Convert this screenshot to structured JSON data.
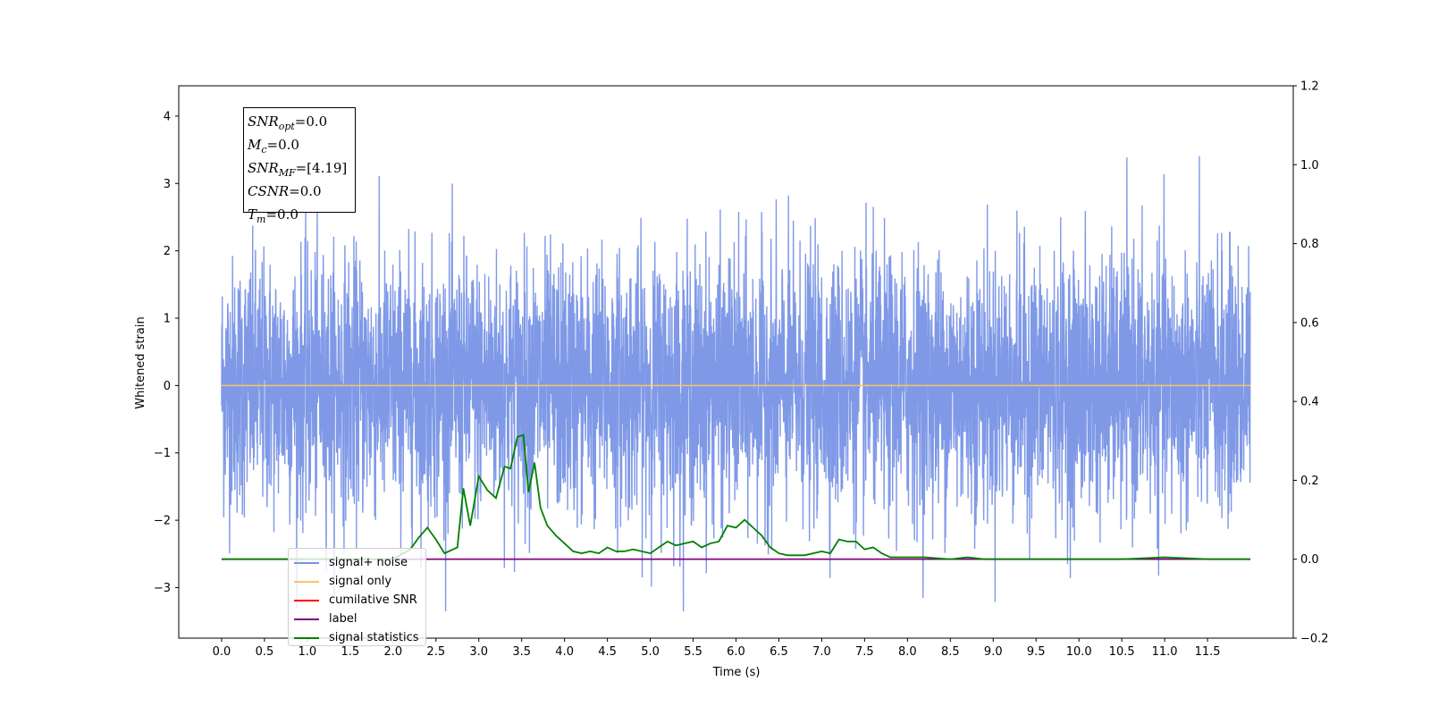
{
  "chart_data": {
    "type": "line",
    "xlabel": "Time (s)",
    "ylabel": "Whitened strain",
    "xlim": [
      -0.5,
      12.5
    ],
    "xticks": [
      "0.0",
      "0.5",
      "1.0",
      "1.5",
      "2.0",
      "2.5",
      "3.0",
      "3.5",
      "4.0",
      "4.5",
      "5.0",
      "5.5",
      "6.0",
      "6.5",
      "7.0",
      "7.5",
      "8.0",
      "8.5",
      "9.0",
      "9.5",
      "10.0",
      "10.5",
      "11.0",
      "11.5"
    ],
    "ylim_left": [
      -3.75,
      4.45
    ],
    "yticks_left": [
      4,
      3,
      2,
      1,
      0,
      -1,
      -2,
      -3
    ],
    "yticks_left_labels": [
      "4",
      "3",
      "2",
      "1",
      "0",
      "−1",
      "−2",
      "−3"
    ],
    "ylim_right": [
      -0.2,
      1.2
    ],
    "yticks_right": [
      "1.2",
      "1.0",
      "0.8",
      "0.6",
      "0.4",
      "0.2",
      "0.0",
      "−0.2"
    ],
    "grid": false,
    "legend_position": "lower-left",
    "series": [
      {
        "name": "signal+ noise",
        "color": "#7893e6",
        "axis": "left",
        "description_stats": {
          "x_start": 0.0,
          "x_end": 12.0,
          "typical_abs": 1.5,
          "max": 3.5,
          "min": -3.35
        }
      },
      {
        "name": "signal only",
        "color": "#ffc266",
        "axis": "left",
        "x": [
          0.0,
          12.0
        ],
        "y": [
          0.0,
          0.0
        ]
      },
      {
        "name": "cumilative SNR",
        "color": "#ff0000",
        "axis": "right",
        "x": [
          0.0,
          12.0
        ],
        "y": [
          0.0,
          0.0
        ]
      },
      {
        "name": "label",
        "color": "#800080",
        "axis": "right",
        "x": [
          0.0,
          12.0
        ],
        "y": [
          0.0,
          0.0
        ]
      },
      {
        "name": "signal statistics",
        "color": "#008000",
        "axis": "right",
        "x": [
          0.0,
          2.0,
          2.2,
          2.3,
          2.4,
          2.5,
          2.6,
          2.75,
          2.82,
          2.9,
          3.0,
          3.1,
          3.2,
          3.3,
          3.37,
          3.45,
          3.52,
          3.58,
          3.65,
          3.72,
          3.8,
          3.9,
          4.0,
          4.1,
          4.2,
          4.3,
          4.4,
          4.5,
          4.6,
          4.7,
          4.8,
          5.0,
          5.2,
          5.3,
          5.4,
          5.5,
          5.6,
          5.7,
          5.8,
          5.9,
          6.0,
          6.1,
          6.2,
          6.3,
          6.4,
          6.5,
          6.6,
          6.7,
          6.8,
          7.0,
          7.1,
          7.2,
          7.3,
          7.4,
          7.5,
          7.6,
          7.7,
          7.8,
          8.0,
          8.2,
          8.5,
          8.7,
          8.9,
          9.2,
          9.5,
          10.0,
          10.5,
          11.0,
          11.5,
          12.0
        ],
        "y": [
          0.0,
          0.0,
          0.025,
          0.055,
          0.08,
          0.05,
          0.015,
          0.03,
          0.18,
          0.085,
          0.21,
          0.175,
          0.155,
          0.235,
          0.23,
          0.31,
          0.315,
          0.17,
          0.245,
          0.13,
          0.085,
          0.06,
          0.04,
          0.02,
          0.015,
          0.02,
          0.015,
          0.03,
          0.02,
          0.02,
          0.025,
          0.015,
          0.045,
          0.035,
          0.04,
          0.045,
          0.03,
          0.04,
          0.045,
          0.085,
          0.08,
          0.1,
          0.08,
          0.06,
          0.03,
          0.015,
          0.01,
          0.01,
          0.01,
          0.02,
          0.015,
          0.05,
          0.045,
          0.045,
          0.025,
          0.03,
          0.015,
          0.005,
          0.005,
          0.005,
          0.0,
          0.005,
          0.0,
          0.0,
          0.0,
          0.0,
          0.0,
          0.005,
          0.0,
          0.0
        ]
      }
    ]
  },
  "info_box": {
    "lines": [
      {
        "sym": "SNR",
        "sub": "opt",
        "value": "=0.0"
      },
      {
        "sym": "M",
        "sub": "c",
        "value": "=0.0"
      },
      {
        "sym": "SNR",
        "sub": "MF",
        "value": "=[4.19]"
      },
      {
        "sym": "CSNR",
        "sub": "",
        "value": "=0.0"
      },
      {
        "sym": "T",
        "sub": "m",
        "value": "=0.0"
      }
    ]
  },
  "legend": {
    "items": [
      {
        "label": "signal+ noise",
        "color": "#7893e6"
      },
      {
        "label": "signal only",
        "color": "#ffc266"
      },
      {
        "label": "cumilative SNR",
        "color": "#ff0000"
      },
      {
        "label": "label",
        "color": "#800080"
      },
      {
        "label": "signal statistics",
        "color": "#008000"
      }
    ]
  }
}
